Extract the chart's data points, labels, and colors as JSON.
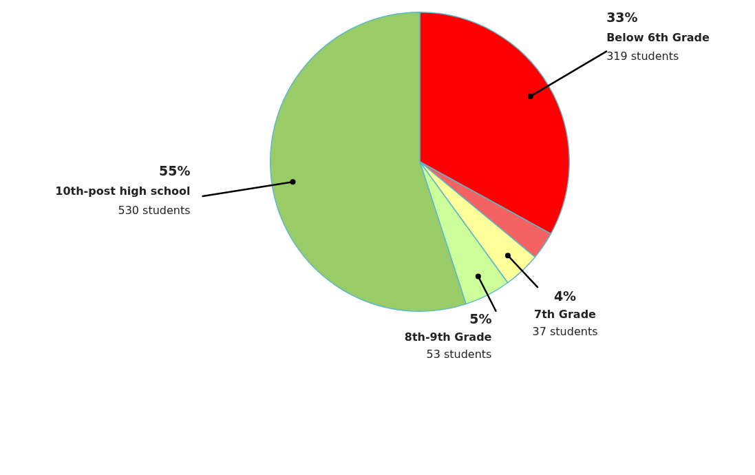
{
  "chart_data": {
    "type": "pie",
    "categories": [
      "Below 6th Grade",
      null,
      "7th Grade",
      "8th-9th Grade",
      "10th-post high school"
    ],
    "values": [
      33,
      3,
      4,
      5,
      55
    ],
    "colors": [
      "#ff0000",
      "#f46262",
      "#ffff99",
      "#ccff99",
      "#99cc66"
    ],
    "value_labels": [
      "33%",
      null,
      "4%",
      "5%",
      "55%"
    ],
    "annotations": [
      {
        "text": "319 students",
        "x": "Below 6th Grade"
      },
      {
        "text": "37 students",
        "x": "7th Grade"
      },
      {
        "text": "53 students",
        "x": "8th-9th Grade"
      },
      {
        "text": "530 students",
        "x": "10th-post high school"
      }
    ],
    "legend": false
  }
}
